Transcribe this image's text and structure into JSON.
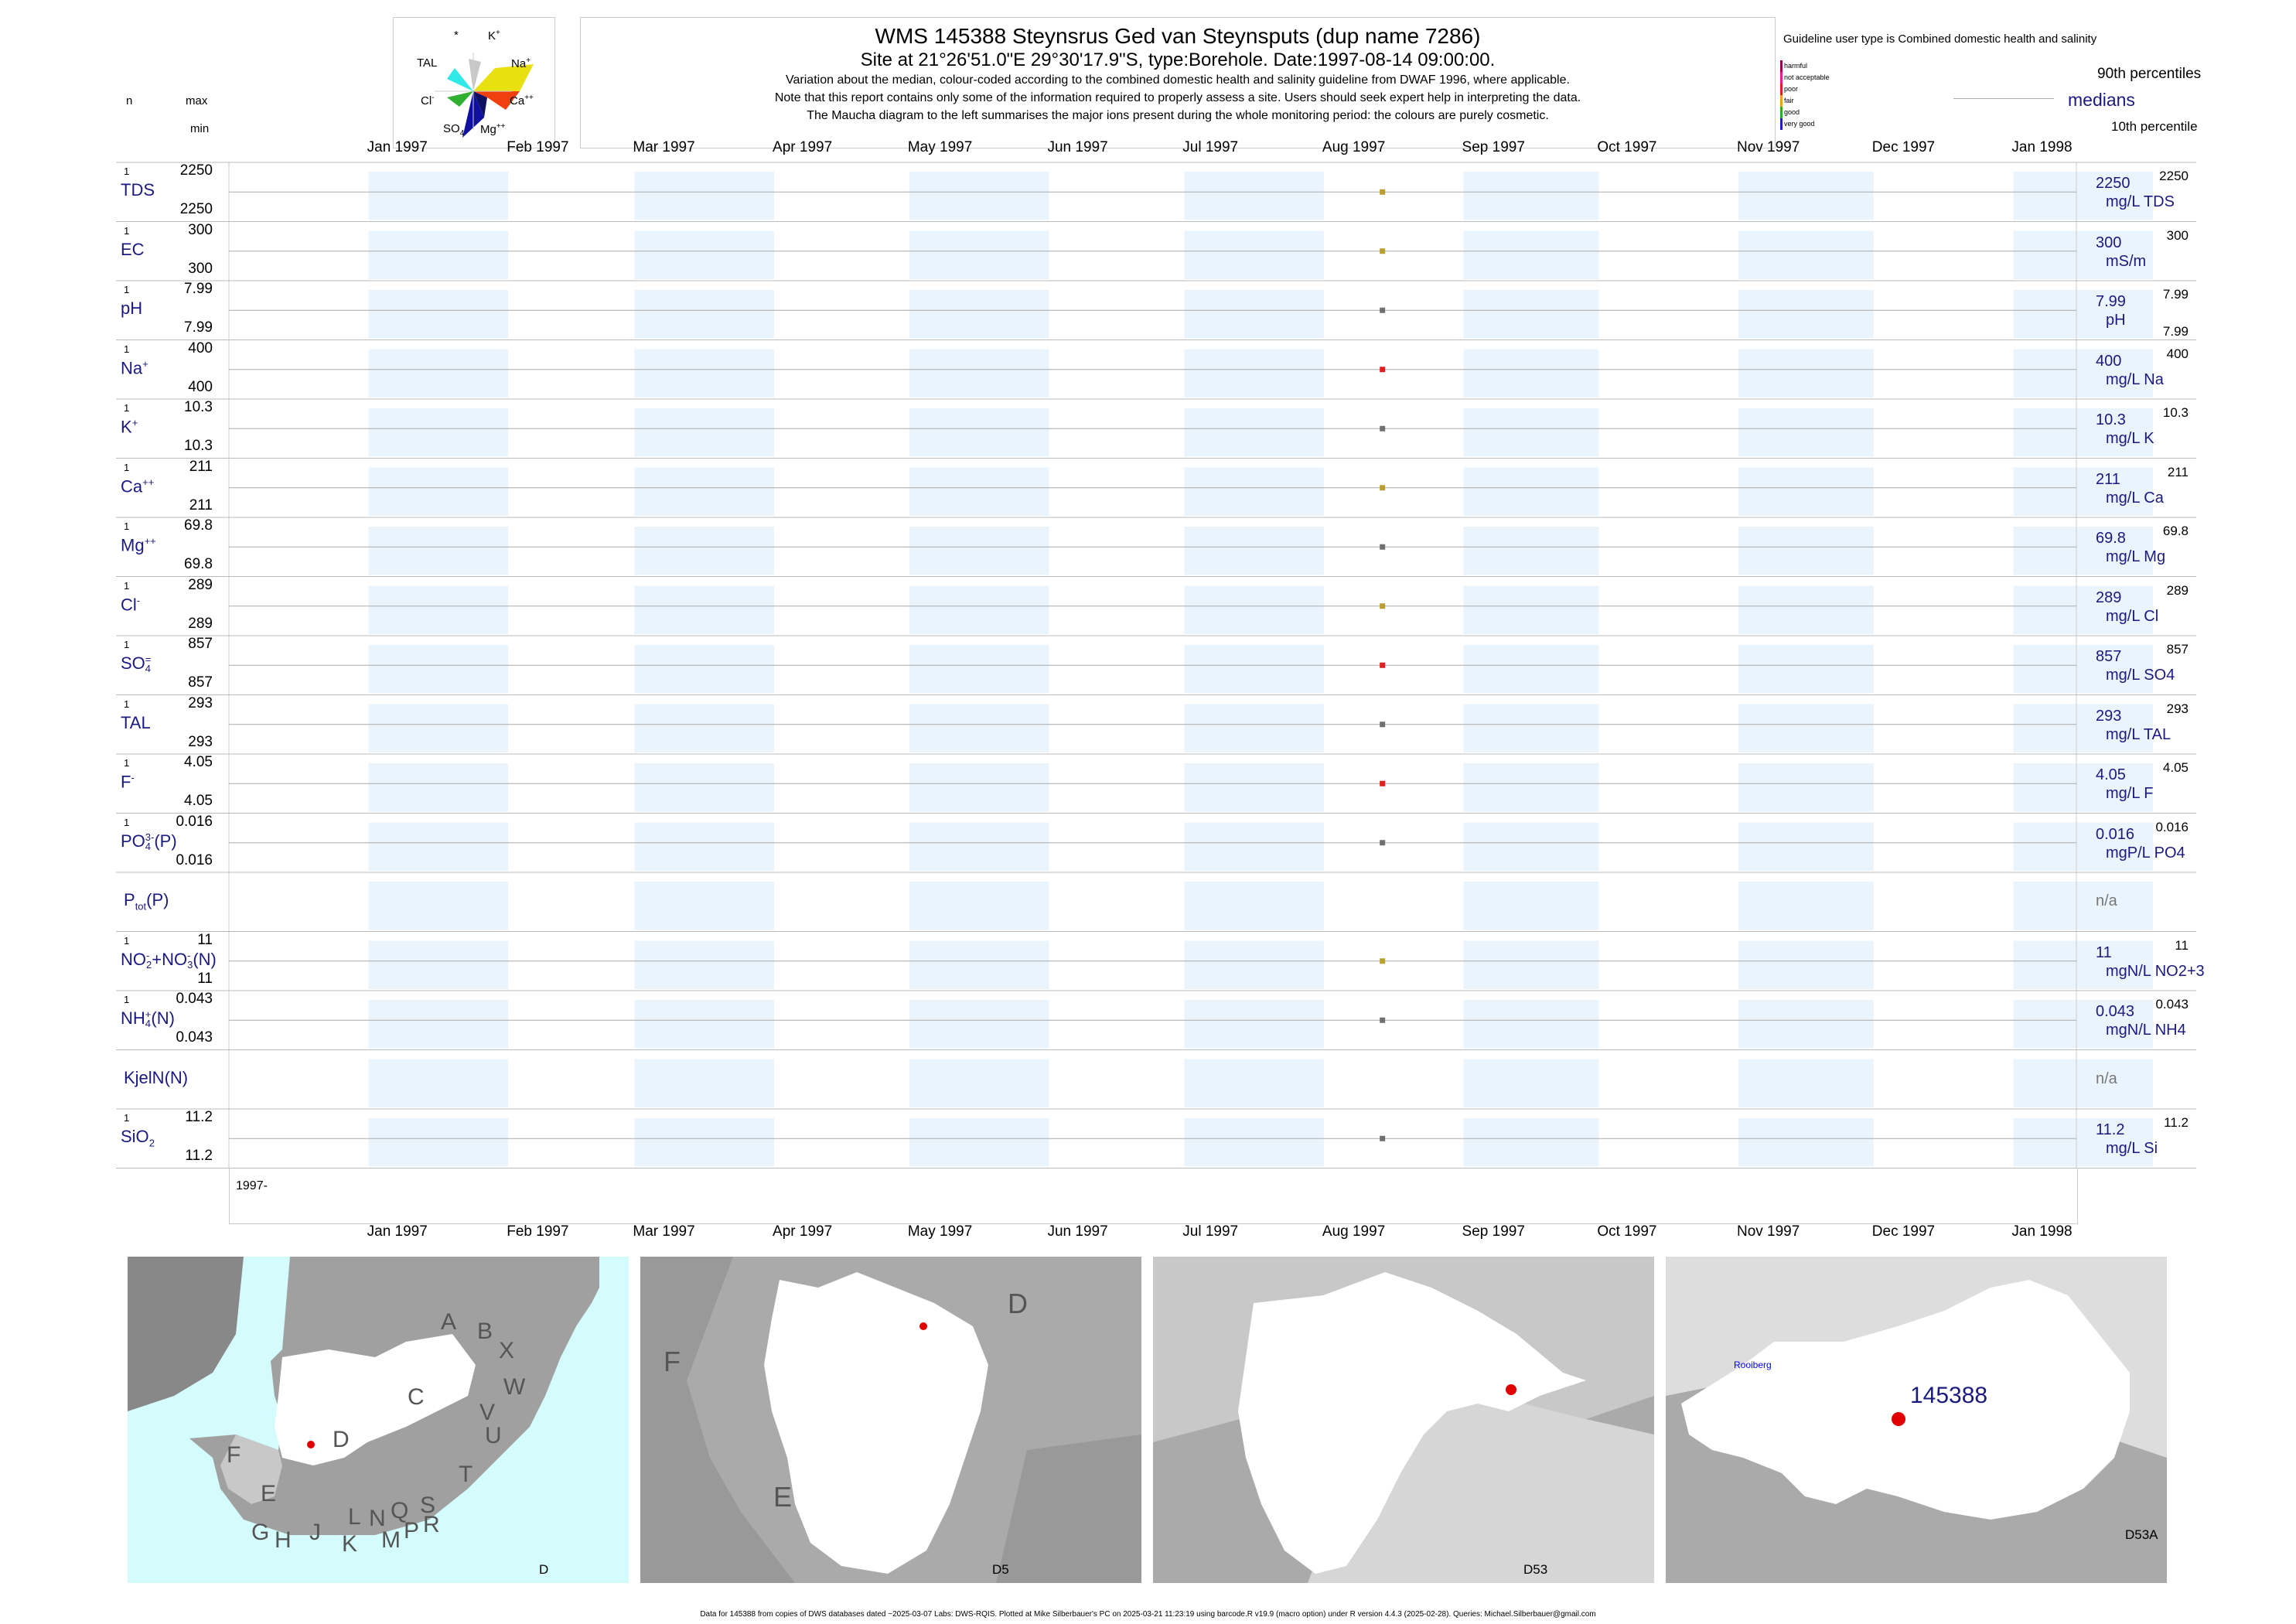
{
  "header": {
    "title": "WMS 145388  Steynsrus Ged van Steynsputs (dup name 7286)",
    "subtitle": "Site at 21°26'51.0\"E 29°30'17.9\"S, type:Borehole. Date:1997-08-14 09:00:00.",
    "note1": "Variation about the median,  colour-coded according to the combined domestic health and salinity guideline from DWAF 1996, where applicable.",
    "note2": "Note that this report contains only some of the information required to properly assess a site. Users should seek expert help in interpreting the data.",
    "note3": "The Maucha diagram to the left summarises the major ions present during the whole monitoring period: the colours are purely cosmetic."
  },
  "left_header": {
    "n": "n",
    "max": "max",
    "min": "min"
  },
  "maucha": {
    "labels": {
      "star": "*",
      "k": "K",
      "k_sup": "+",
      "tal": "TAL",
      "na": "Na",
      "na_sup": "+",
      "cl": "Cl",
      "cl_sup": "-",
      "ca": "Ca",
      "ca_sup": "++",
      "so4": "SO",
      "so4_sub": "4",
      "mg": "Mg",
      "mg_sup": "++"
    },
    "colors": {
      "k": "#c8c8c8",
      "na": "#e8e010",
      "ca": "#f04010",
      "mg": "#101060",
      "so4": "#1010a0",
      "cl": "#30b030",
      "tal": "#30e8e8"
    }
  },
  "legend": {
    "guideline": "Guideline user type is Combined domestic health and salinity",
    "p90": "90th percentiles",
    "medians": "medians",
    "p10": "10th percentile",
    "classes": [
      {
        "label": "harmful",
        "color": "#9a0050"
      },
      {
        "label": "not acceptable",
        "color": "#e020a0"
      },
      {
        "label": "poor",
        "color": "#e02020"
      },
      {
        "label": "fair",
        "color": "#f0a020"
      },
      {
        "label": "good",
        "color": "#20b020"
      },
      {
        "label": "very good",
        "color": "#2020c0"
      }
    ]
  },
  "axis": {
    "months": [
      "Jan 1997",
      "Feb 1997",
      "Mar 1997",
      "Apr 1997",
      "May 1997",
      "Jun 1997",
      "Jul 1997",
      "Aug 1997",
      "Sep 1997",
      "Oct 1997",
      "Nov 1997",
      "Dec 1997",
      "Jan 1998"
    ],
    "year_label": "1997-"
  },
  "chart_data": {
    "type": "scatter",
    "x_unit": "date",
    "x_range": [
      "1996-12-01",
      "1998-01-15"
    ],
    "sample_date": "1997-08-14",
    "series": [
      {
        "name": "TDS",
        "n": "1",
        "max": "2250",
        "min": "2250",
        "median": "2250",
        "p90": "2250",
        "p10": "",
        "unit": "mg/L TDS",
        "value": 2250,
        "color": "#b8a030"
      },
      {
        "name": "EC",
        "n": "1",
        "max": "300",
        "min": "300",
        "median": "300",
        "p90": "300",
        "p10": "",
        "unit": "mS/m",
        "value": 300,
        "color": "#b8a030"
      },
      {
        "name": "pH",
        "n": "1",
        "max": "7.99",
        "min": "7.99",
        "median": "7.99",
        "p90": "7.99",
        "p10": "7.99",
        "unit": "pH",
        "value": 7.99,
        "color": "#707070"
      },
      {
        "name": "Na",
        "sup": "+",
        "n": "1",
        "max": "400",
        "min": "400",
        "median": "400",
        "p90": "400",
        "p10": "",
        "unit": "mg/L Na",
        "value": 400,
        "color": "#e02020"
      },
      {
        "name": "K",
        "sup": "+",
        "n": "1",
        "max": "10.3",
        "min": "10.3",
        "median": "10.3",
        "p90": "10.3",
        "p10": "",
        "unit": "mg/L K",
        "value": 10.3,
        "color": "#707070"
      },
      {
        "name": "Ca",
        "sup": "++",
        "n": "1",
        "max": "211",
        "min": "211",
        "median": "211",
        "p90": "211",
        "p10": "",
        "unit": "mg/L Ca",
        "value": 211,
        "color": "#b8a030"
      },
      {
        "name": "Mg",
        "sup": "++",
        "n": "1",
        "max": "69.8",
        "min": "69.8",
        "median": "69.8",
        "p90": "69.8",
        "p10": "",
        "unit": "mg/L Mg",
        "value": 69.8,
        "color": "#707070"
      },
      {
        "name": "Cl",
        "sup": "-",
        "n": "1",
        "max": "289",
        "min": "289",
        "median": "289",
        "p90": "289",
        "p10": "",
        "unit": "mg/L Cl",
        "value": 289,
        "color": "#b8a030"
      },
      {
        "name": "SO",
        "sub": "4",
        "sup": "=",
        "n": "1",
        "max": "857",
        "min": "857",
        "median": "857",
        "p90": "857",
        "p10": "",
        "unit": "mg/L SO4",
        "value": 857,
        "color": "#e02020"
      },
      {
        "name": "TAL",
        "n": "1",
        "max": "293",
        "min": "293",
        "median": "293",
        "p90": "293",
        "p10": "",
        "unit": "mg/L TAL",
        "value": 293,
        "color": "#707070"
      },
      {
        "name": "F",
        "sup": "-",
        "n": "1",
        "max": "4.05",
        "min": "4.05",
        "median": "4.05",
        "p90": "4.05",
        "p10": "",
        "unit": "mg/L F",
        "value": 4.05,
        "color": "#e02020"
      },
      {
        "name": "PO",
        "sub": "4",
        "sup": "3-",
        "suffix": "(P)",
        "n": "1",
        "max": "0.016",
        "min": "0.016",
        "median": "0.016",
        "p90": "0.016",
        "p10": "",
        "unit": "mgP/L PO4",
        "value": 0.016,
        "color": "#707070"
      },
      {
        "name": "P",
        "sub": "tot",
        "suffix": "(P)",
        "n": "",
        "max": "",
        "min": "",
        "median": "",
        "p90": "",
        "p10": "",
        "unit": "",
        "na": "n/a",
        "value": null,
        "color": "#707070"
      },
      {
        "name": "NO",
        "sub": "2",
        "sup": "-",
        "suffix": "+NO",
        "sub2": "3",
        "sup2": "-",
        "suffix2": "(N)",
        "n": "1",
        "max": "11",
        "min": "11",
        "median": "11",
        "p90": "11",
        "p10": "",
        "unit": "mgN/L NO2+3",
        "value": 11,
        "color": "#b8a030"
      },
      {
        "name": "NH",
        "sub": "4",
        "sup": "+",
        "suffix": "(N)",
        "n": "1",
        "max": "0.043",
        "min": "0.043",
        "median": "0.043",
        "p90": "0.043",
        "p10": "",
        "unit": "mgN/L NH4",
        "value": 0.043,
        "color": "#707070"
      },
      {
        "name": "KjelN(N)",
        "n": "",
        "max": "",
        "min": "",
        "median": "",
        "p90": "",
        "p10": "",
        "unit": "",
        "na": "n/a",
        "value": null,
        "color": "#707070"
      },
      {
        "name": "SiO",
        "sub": "2",
        "n": "1",
        "max": "11.2",
        "min": "11.2",
        "median": "11.2",
        "p90": "11.2",
        "p10": "",
        "unit": "mg/L Si",
        "value": 11.2,
        "color": "#707070"
      }
    ]
  },
  "maps": {
    "map1": {
      "label": "D",
      "regions": [
        "A",
        "B",
        "X",
        "W",
        "C",
        "V",
        "U",
        "T",
        "D",
        "F",
        "E",
        "G",
        "H",
        "J",
        "K",
        "L",
        "N",
        "M",
        "Q",
        "P",
        "S",
        "R"
      ]
    },
    "map2": {
      "label": "D5",
      "regions": [
        "D",
        "F",
        "E"
      ]
    },
    "map3": {
      "label": "D53"
    },
    "map4": {
      "label": "D53A",
      "site": "145388",
      "town": "Rooiberg"
    }
  },
  "footer": "Data for 145388 from copies of DWS databases dated ~2025-03-07 Labs: DWS-RQIS. Plotted at Mike Silberbauer's PC on 2025-03-21 11:23:19 using barcode.R v19.9 (macro option) under R version 4.4.3 (2025-02-28). Queries: Michael.Silberbauer@gmail.com"
}
